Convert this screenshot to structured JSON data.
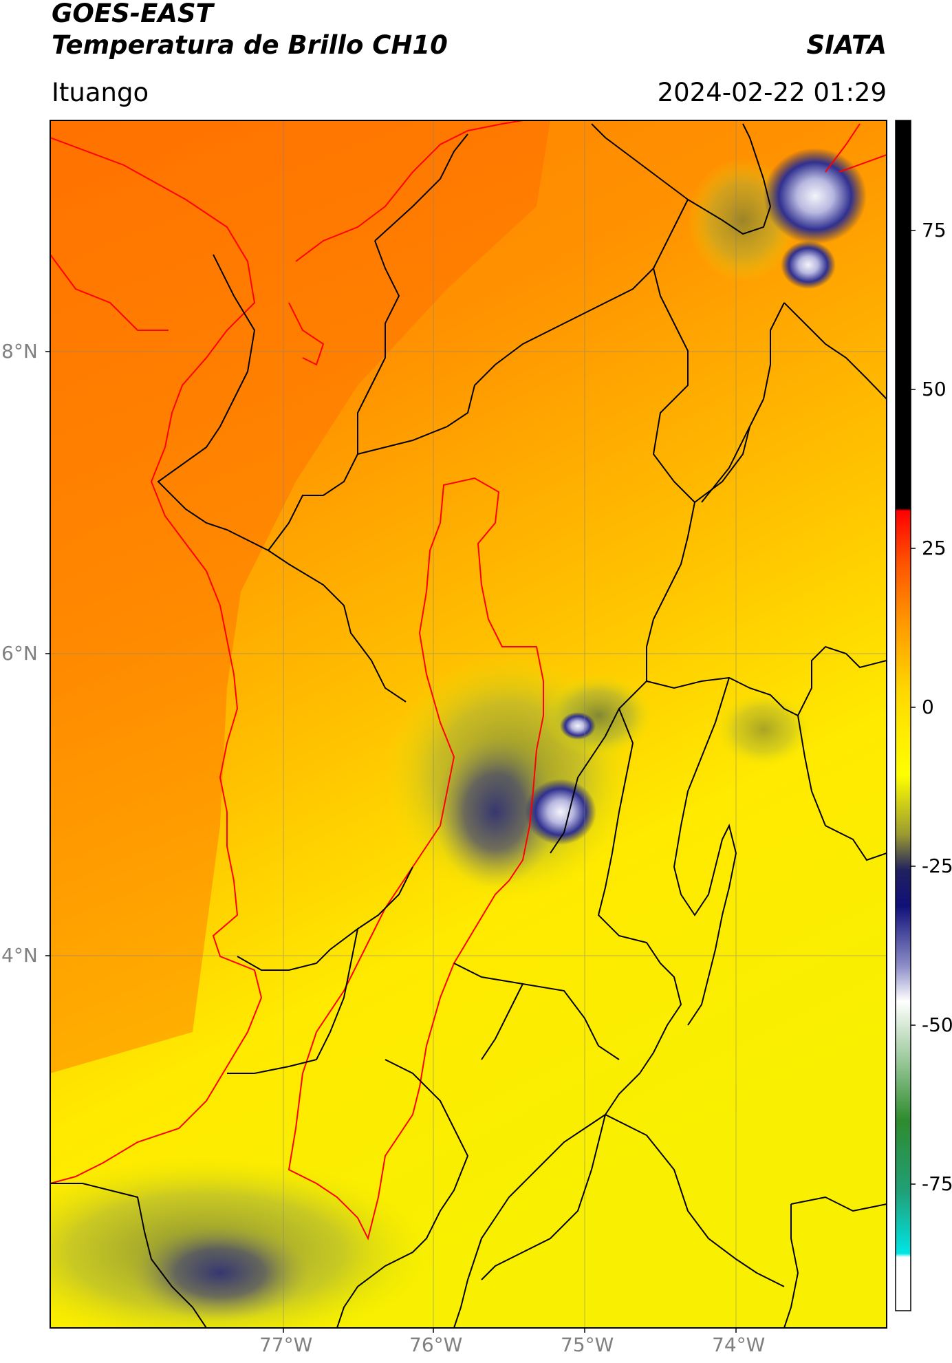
{
  "header": {
    "satellite": "GOES-EAST",
    "product": "Temperatura de Brillo CH10",
    "agency": "SIATA",
    "region": "Ituango",
    "datetime": "2024-02-22 01:29"
  },
  "map": {
    "lon_ticks": [
      "77°W",
      "76°W",
      "75°W",
      "74°W"
    ],
    "lat_ticks": [
      "8°N",
      "6°N",
      "4°N"
    ],
    "extent": {
      "lon_min": -78.55,
      "lon_max": -73.0,
      "lat_min": 2.2,
      "lat_max": 9.55
    },
    "colors": {
      "state_borders": "#000000",
      "coast_and_basin": "#ff0000",
      "gridlines": "#808080"
    }
  },
  "colorbar": {
    "ticks": [
      "75",
      "50",
      "25",
      "0",
      "-25",
      "-50",
      "-75"
    ],
    "range": [
      -95,
      92
    ],
    "colors": {
      "black": "#000000",
      "red": "#ff0000",
      "orange": "#ff8c00",
      "yellow": "#ffff00",
      "navy": "#14147a",
      "white": "#ffffff",
      "green": "#2e8b2e",
      "cyan": "#00e5e5"
    }
  }
}
